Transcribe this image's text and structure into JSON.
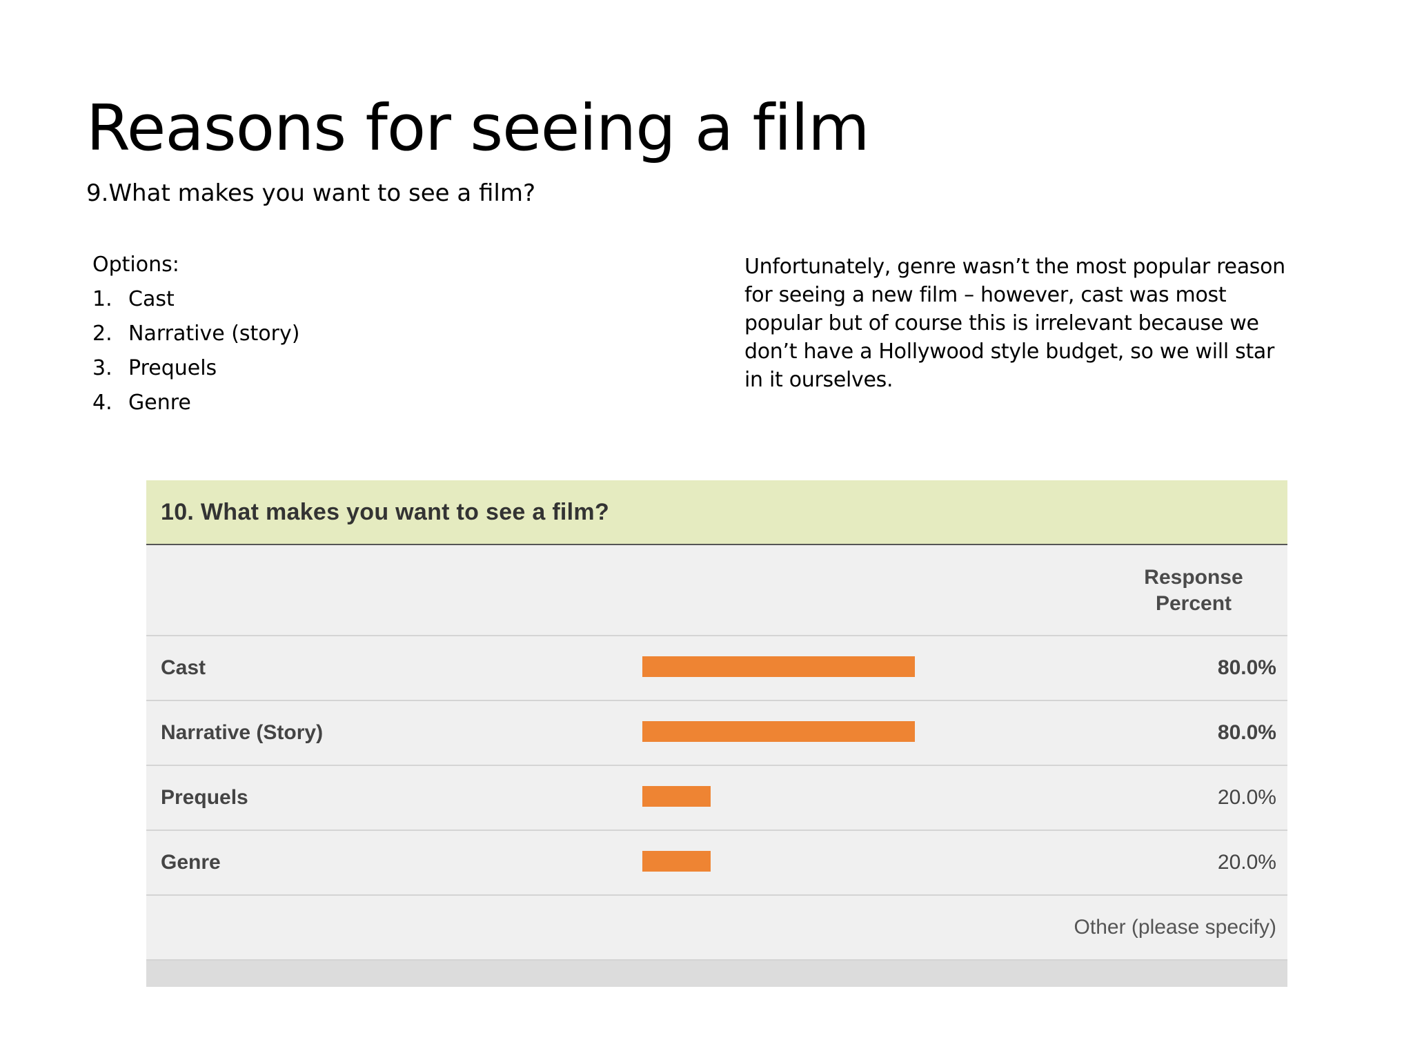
{
  "slide": {
    "title": "Reasons for seeing a film",
    "subtitle": "9.What makes you want to see a film?"
  },
  "options": {
    "heading": "Options:",
    "items": [
      {
        "number": "1.",
        "label": "Cast"
      },
      {
        "number": "2.",
        "label": "Narrative (story)"
      },
      {
        "number": "3.",
        "label": "Prequels"
      },
      {
        "number": "4.",
        "label": "Genre"
      }
    ]
  },
  "commentary": "Unfortunately, genre wasn’t the most popular reason for seeing a new film – however, cast was most popular but of course this is irrelevant because we don’t have a Hollywood style budget, so we will star in it ourselves.",
  "survey": {
    "question": "10. What makes you want to see a film?",
    "column_header_line1": "Response",
    "column_header_line2": "Percent",
    "other_label": "Other (please specify)",
    "bar_color": "#ee8433",
    "header_color": "#e5ebc0"
  },
  "chart_data": {
    "type": "bar",
    "orientation": "horizontal",
    "categories": [
      "Cast",
      "Narrative (Story)",
      "Prequels",
      "Genre"
    ],
    "values": [
      80.0,
      80.0,
      20.0,
      20.0
    ],
    "value_labels": [
      "80.0%",
      "80.0%",
      "20.0%",
      "20.0%"
    ],
    "title": "10. What makes you want to see a film?",
    "ylabel": "Response Percent",
    "xlim": [
      0,
      100
    ]
  }
}
